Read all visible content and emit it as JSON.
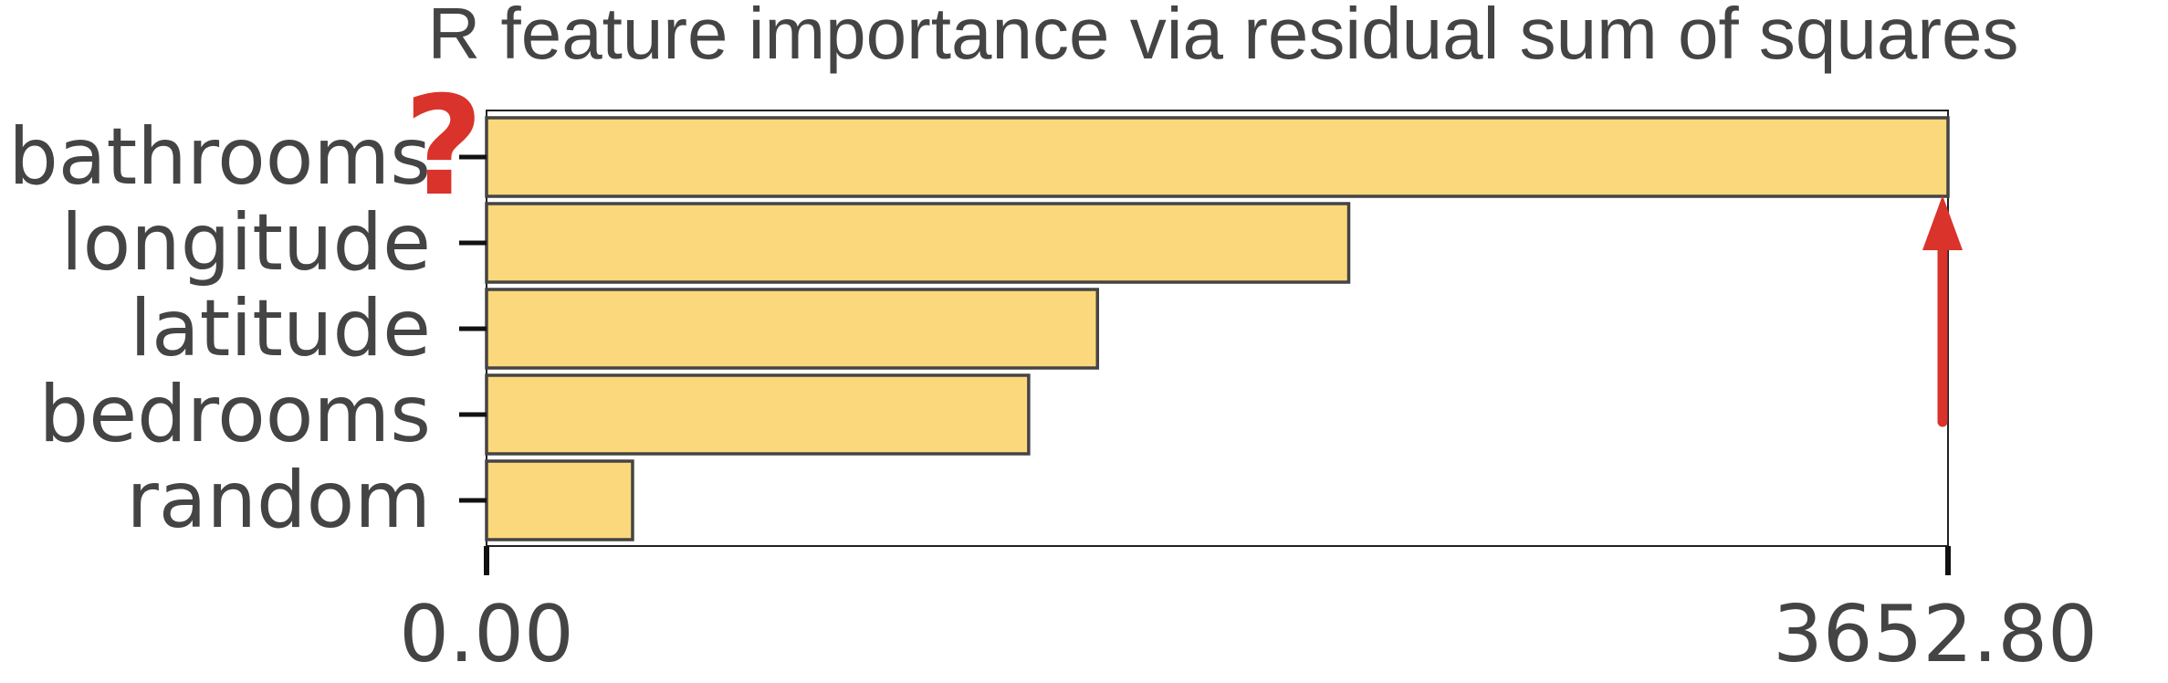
{
  "chart_data": {
    "type": "bar",
    "orientation": "horizontal",
    "title": "R feature importance via residual sum of squares",
    "xlabel": "",
    "ylabel": "",
    "categories": [
      "bathrooms",
      "longitude",
      "latitude",
      "bedrooms",
      "random"
    ],
    "values": [
      3652.8,
      2155.0,
      1527.0,
      1355.0,
      365.0
    ],
    "xlim": [
      0,
      3652.8
    ],
    "x_tick_labels": [
      "0.00",
      "3652.80"
    ],
    "grid": false,
    "legend": "none",
    "bar_color": "#fcd87c",
    "bar_edge_color": "#444444",
    "annotations": [
      {
        "text": "?",
        "color": "#d9332b",
        "target": "bathrooms"
      },
      {
        "text": "",
        "kind": "arrow-up",
        "color": "#d9332b",
        "target": "bathrooms"
      }
    ]
  }
}
